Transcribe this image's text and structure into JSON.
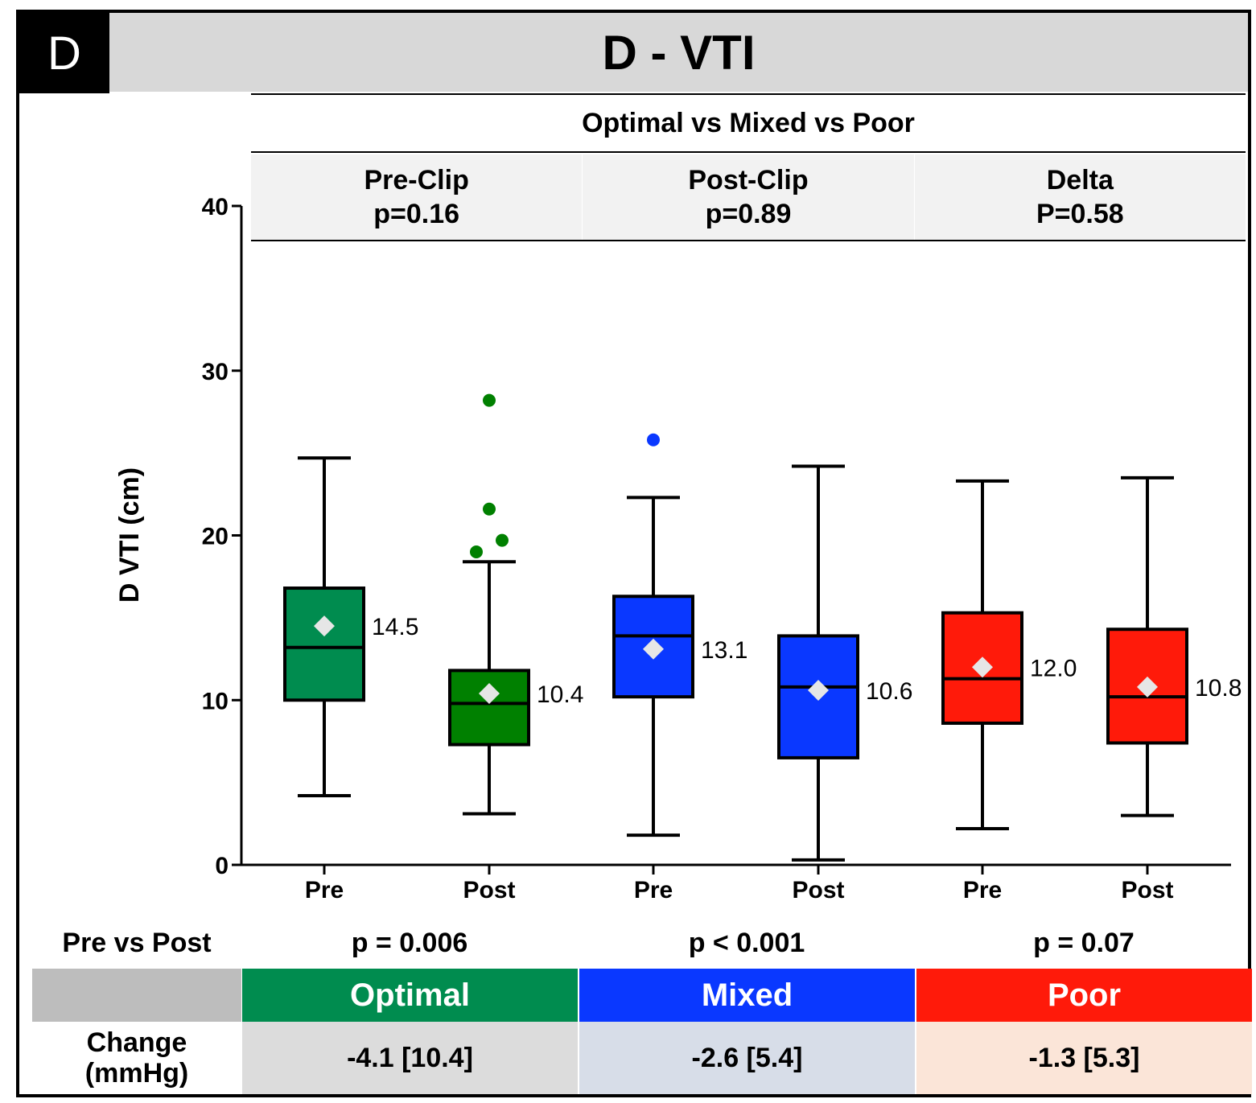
{
  "panel_letter": "D",
  "title": "D - VTI",
  "subtitle": "Optimal vs Mixed vs Poor",
  "groups": [
    {
      "name": "Pre-Clip",
      "p": "p=0.16"
    },
    {
      "name": "Post-Clip",
      "p": "p=0.89"
    },
    {
      "name": "Delta",
      "p": "P=0.58"
    }
  ],
  "pre_vs_post": {
    "label": "Pre vs Post",
    "values": [
      "p = 0.006",
      "p < 0.001",
      "p = 0.07"
    ]
  },
  "table": {
    "headers": [
      "Optimal",
      "Mixed",
      "Poor"
    ],
    "header_colors": [
      "#008c4f",
      "#0a38ff",
      "#ff1a0a"
    ],
    "blank_header_color": "#bdbdbd",
    "row_label": "Change\n(mmHg)",
    "row_label_line1": "Change",
    "row_label_line2": "(mmHg)",
    "values": [
      "-4.1 [10.4]",
      "-2.6 [5.4]",
      "-1.3 [5.3]"
    ],
    "value_colors": [
      "#dcdcdc",
      "#d7dde8",
      "#fbe5d8"
    ]
  },
  "chart_data": {
    "type": "box",
    "ylabel": "D VTI (cm)",
    "ylim": [
      0,
      40
    ],
    "yticks": [
      0,
      10,
      20,
      30,
      40
    ],
    "categories": [
      "Pre",
      "Post",
      "Pre",
      "Post",
      "Pre",
      "Post"
    ],
    "series": [
      {
        "group": "Optimal",
        "category": "Pre",
        "color": "#008c4f",
        "whisker_low": 4.2,
        "q1": 10.0,
        "median": 13.2,
        "q3": 16.8,
        "whisker_high": 24.7,
        "mean": 14.5,
        "mean_label": "14.5",
        "outliers": []
      },
      {
        "group": "Optimal",
        "category": "Post",
        "color": "#008000",
        "whisker_low": 3.1,
        "q1": 7.3,
        "median": 9.8,
        "q3": 11.8,
        "whisker_high": 18.4,
        "mean": 10.4,
        "mean_label": "10.4",
        "outliers": [
          19.0,
          19.7,
          21.6,
          28.2
        ]
      },
      {
        "group": "Mixed",
        "category": "Pre",
        "color": "#0a38ff",
        "whisker_low": 1.8,
        "q1": 10.2,
        "median": 13.9,
        "q3": 16.3,
        "whisker_high": 22.3,
        "mean": 13.1,
        "mean_label": "13.1",
        "outliers": [
          25.8
        ]
      },
      {
        "group": "Mixed",
        "category": "Post",
        "color": "#0a38ff",
        "whisker_low": 0.3,
        "q1": 6.5,
        "median": 10.8,
        "q3": 13.9,
        "whisker_high": 24.2,
        "mean": 10.6,
        "mean_label": "10.6",
        "outliers": []
      },
      {
        "group": "Poor",
        "category": "Pre",
        "color": "#ff1a0a",
        "whisker_low": 2.2,
        "q1": 8.6,
        "median": 11.3,
        "q3": 15.3,
        "whisker_high": 23.3,
        "mean": 12.0,
        "mean_label": "12.0",
        "outliers": []
      },
      {
        "group": "Poor",
        "category": "Post",
        "color": "#ff1a0a",
        "whisker_low": 3.0,
        "q1": 7.4,
        "median": 10.2,
        "q3": 14.3,
        "whisker_high": 23.5,
        "mean": 10.8,
        "mean_label": "10.8",
        "outliers": []
      }
    ],
    "mean_marker_color": "#e6e6e6"
  }
}
